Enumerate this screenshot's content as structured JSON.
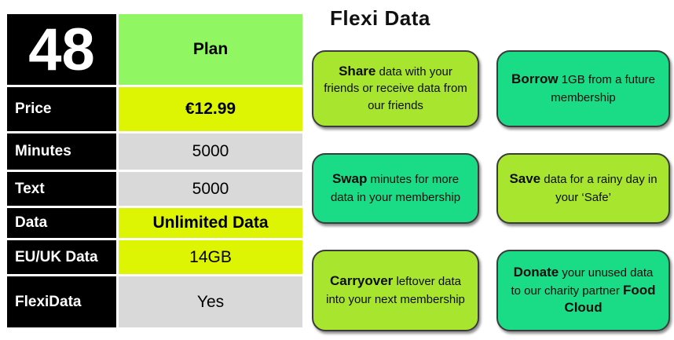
{
  "table": {
    "number": "48",
    "plan_label": "Plan",
    "rows": [
      {
        "label": "Price",
        "value": "€12.99",
        "style": "yellow",
        "bold": true
      },
      {
        "label": "Minutes",
        "value": "5000",
        "style": "gray",
        "bold": false
      },
      {
        "label": "Text",
        "value": "5000",
        "style": "gray",
        "bold": false
      },
      {
        "label": "Data",
        "value": "Unlimited Data",
        "style": "yellow",
        "bold": true
      },
      {
        "label": "EU/UK Data",
        "value": "14GB",
        "style": "yellow",
        "bold": false
      },
      {
        "label": "FlexiData",
        "value": "Yes",
        "style": "gray",
        "bold": false
      }
    ]
  },
  "panel": {
    "title": "Flexi Data",
    "cards": [
      {
        "keyword": "Share",
        "text": " data with your friends or receive data from our friends",
        "color": "#A8E52F"
      },
      {
        "keyword": "Borrow",
        "text": " 1GB from a future membership",
        "color": "#1ADC87"
      },
      {
        "keyword": "Swap",
        "text": " minutes for more data in your membership",
        "color": "#1ADC87"
      },
      {
        "keyword": "Save",
        "text": " data for a rainy day in your ‘Safe’",
        "color": "#A8E52F"
      },
      {
        "keyword": "Carryover",
        "text": " leftover data into your next membership",
        "color": "#A8E52F"
      },
      {
        "keyword": "Donate",
        "text": " your unused data to our charity partner ",
        "bold_tail": "Food Cloud",
        "color": "#1ADC87"
      }
    ]
  },
  "colors": {
    "table_label_bg": "#000000",
    "table_label_text": "#FFFFFF",
    "plan_header_green": "#90F763",
    "highlight_yellow": "#DDF402",
    "neutral_gray": "#D9D9D9",
    "card_lime": "#A8E52F",
    "card_green": "#1ADC87",
    "card_border": "#3B3B3B"
  }
}
